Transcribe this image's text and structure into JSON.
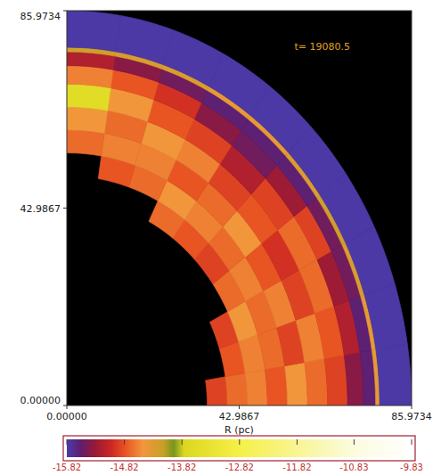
{
  "chart_data": {
    "type": "heatmap",
    "xlabel": "R (pc)",
    "annotation": "t= 19080.5",
    "xlim": [
      0,
      85.9734
    ],
    "ylim": [
      0,
      85.9734
    ],
    "xticks": [
      {
        "value": 0,
        "label": "0.00000"
      },
      42.9867,
      85.9734
    ],
    "yticks": [
      {
        "value": 0,
        "label": "0.00000"
      },
      42.9867,
      85.9734
    ],
    "r_edges": [
      30,
      35,
      40,
      45,
      50,
      55,
      60,
      65,
      70,
      74,
      77,
      78,
      85.9734
    ],
    "theta_edges": [
      0,
      9,
      18,
      27,
      36,
      45,
      54,
      63,
      72,
      81,
      90
    ],
    "values": [
      [
        null,
        -14.9,
        -14.7,
        -14.6,
        -14.8,
        -14.5,
        -14.7,
        -14.9,
        -15.4,
        -15.6,
        -14.4,
        -15.8
      ],
      [
        null,
        null,
        -14.8,
        -14.6,
        -14.7,
        -14.9,
        -14.6,
        -14.8,
        -15.2,
        -15.6,
        -14.4,
        -15.8
      ],
      [
        null,
        null,
        -14.9,
        -14.5,
        -14.7,
        -14.6,
        -14.9,
        -14.7,
        -15.3,
        -15.5,
        -14.3,
        -15.8
      ],
      [
        null,
        null,
        null,
        -14.7,
        -14.6,
        -14.8,
        -15.0,
        -14.7,
        -14.9,
        -15.5,
        -14.2,
        -15.8
      ],
      [
        null,
        null,
        null,
        -14.9,
        -14.7,
        -14.5,
        -14.8,
        -14.9,
        -15.3,
        -15.6,
        -14.3,
        -15.8
      ],
      [
        null,
        null,
        null,
        -14.8,
        -14.6,
        -14.7,
        -14.9,
        -15.2,
        -15.5,
        -15.6,
        -14.4,
        -15.8
      ],
      [
        null,
        null,
        null,
        -14.7,
        -14.5,
        -14.8,
        -14.6,
        -14.9,
        -15.4,
        -15.6,
        -14.4,
        -15.8
      ],
      [
        null,
        null,
        null,
        null,
        -14.7,
        -14.6,
        -14.5,
        -14.8,
        -15.0,
        -15.5,
        -14.3,
        -15.8
      ],
      [
        null,
        null,
        null,
        null,
        -14.8,
        -14.6,
        -14.7,
        -14.5,
        -14.8,
        -15.4,
        -14.3,
        -15.8
      ],
      [
        null,
        null,
        null,
        null,
        null,
        -14.7,
        -14.5,
        -13.6,
        -14.6,
        -15.2,
        -14.2,
        -15.8
      ]
    ],
    "color_range": [
      -15.82,
      -9.83
    ],
    "color_ticks": [
      -15.82,
      -14.82,
      -13.82,
      -12.82,
      -11.82,
      -10.83,
      -9.83
    ]
  }
}
